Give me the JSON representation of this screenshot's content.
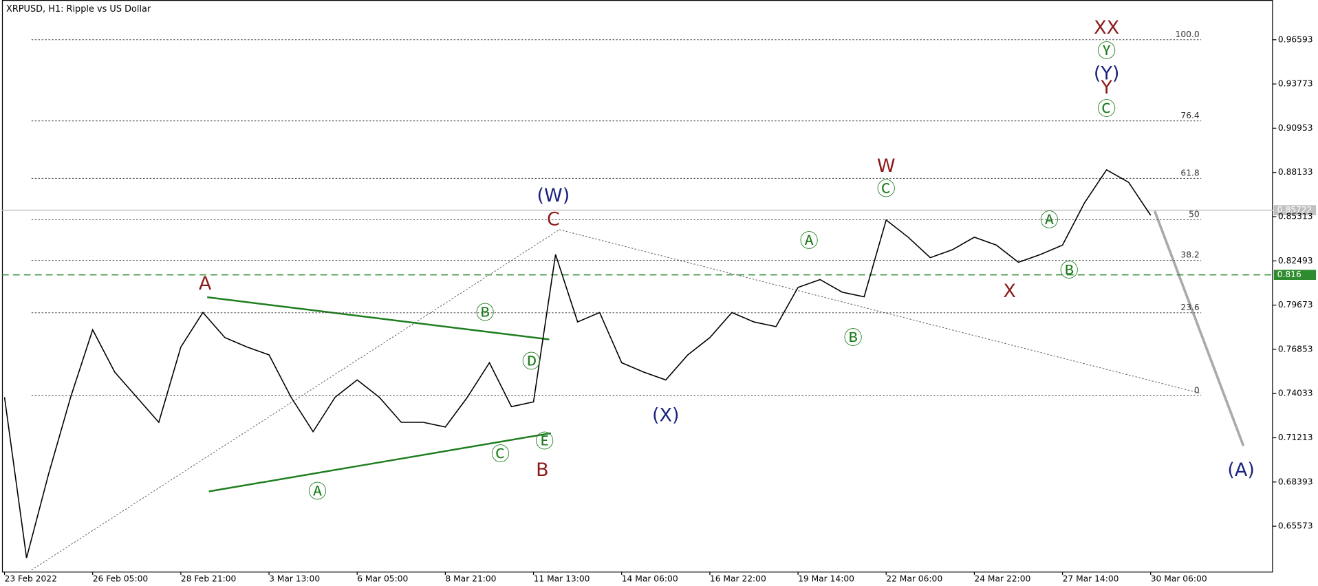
{
  "chart_data": {
    "type": "line",
    "title": "XRPUSD, H1:  Ripple vs US Dollar",
    "color": "#000000",
    "categories": [
      "23 Feb 2022",
      null,
      null,
      null,
      "26 Feb 05:00",
      null,
      null,
      null,
      "28 Feb 21:00",
      null,
      null,
      null,
      "3 Mar 13:00",
      null,
      null,
      null,
      "6 Mar 05:00",
      null,
      null,
      null,
      "8 Mar 21:00",
      null,
      null,
      null,
      "11 Mar 13:00",
      null,
      null,
      null,
      "14 Mar 06:00",
      null,
      null,
      null,
      "16 Mar 22:00",
      null,
      null,
      null,
      "19 Mar 14:00",
      null,
      null,
      null,
      "22 Mar 06:00",
      null,
      null,
      null,
      "24 Mar 22:00",
      null,
      null,
      null,
      "27 Mar 14:00",
      null,
      null,
      null,
      "30 Mar 06:00"
    ],
    "values": [
      0.738,
      0.6355,
      0.689,
      0.738,
      0.781,
      0.754,
      0.738,
      0.722,
      0.77,
      0.792,
      0.776,
      0.77,
      0.765,
      0.738,
      0.716,
      0.738,
      0.749,
      0.738,
      0.722,
      0.722,
      0.719,
      0.738,
      0.76,
      0.732,
      0.735,
      0.829,
      0.786,
      0.792,
      0.76,
      0.754,
      0.749,
      0.765,
      0.776,
      0.792,
      0.786,
      0.783,
      0.808,
      0.813,
      0.805,
      0.802,
      0.851,
      0.84,
      0.827,
      0.832,
      0.84,
      0.835,
      0.824,
      0.829,
      0.835,
      0.862,
      0.883,
      0.875,
      0.854
    ],
    "ylim": [
      0.62677,
      0.99127
    ],
    "yticks": [
      0.96593,
      0.93773,
      0.90953,
      0.88133,
      0.85313,
      0.82493,
      0.79673,
      0.76853,
      0.74033,
      0.71213,
      0.68393,
      0.65573
    ],
    "price_lines": [
      {
        "value": 0.85722,
        "color": "#c0c0c0",
        "style": "solid"
      },
      {
        "value": 0.816,
        "color": "#2e8b2e",
        "style": "dashed"
      }
    ],
    "fib_levels": [
      {
        "label": "100.0",
        "price": 0.96593
      },
      {
        "label": "76.4",
        "price": 0.91419
      },
      {
        "label": "61.8",
        "price": 0.87754
      },
      {
        "label": "50",
        "price": 0.85112
      },
      {
        "label": "38.2",
        "price": 0.82525
      },
      {
        "label": "23.6",
        "price": 0.79183
      },
      {
        "label": "0",
        "price": 0.73901
      }
    ],
    "annotations": [
      {
        "text": "A",
        "color": "#8b1a1a",
        "at": 9.1,
        "price": 0.81
      },
      {
        "text": "C",
        "color": "#8b1a1a",
        "at": 24.9,
        "price": 0.851
      },
      {
        "text": "(W)",
        "color": "#1a237e",
        "at": 24.9,
        "price": 0.866
      },
      {
        "text": "B",
        "color": "#8b1a1a",
        "at": 24.4,
        "price": 0.691
      },
      {
        "text": "Ⓔ",
        "color": "#1e7d1e",
        "at": 24.5,
        "price": 0.709
      },
      {
        "text": "Ⓓ",
        "color": "#1e7d1e",
        "at": 23.9,
        "price": 0.76
      },
      {
        "text": "Ⓑ",
        "color": "#1e7d1e",
        "at": 21.8,
        "price": 0.791
      },
      {
        "text": "Ⓒ",
        "color": "#1e7d1e",
        "at": 22.5,
        "price": 0.701
      },
      {
        "text": "Ⓐ",
        "color": "#1e7d1e",
        "at": 14.2,
        "price": 0.677
      },
      {
        "text": "(X)",
        "color": "#1a237e",
        "at": 30.0,
        "price": 0.726
      },
      {
        "text": "Ⓐ",
        "color": "#1e7d1e",
        "at": 36.5,
        "price": 0.837
      },
      {
        "text": "Ⓑ",
        "color": "#1e7d1e",
        "at": 38.5,
        "price": 0.775
      },
      {
        "text": "Ⓒ",
        "color": "#1e7d1e",
        "at": 40.0,
        "price": 0.87
      },
      {
        "text": "W",
        "color": "#8b1a1a",
        "at": 40.0,
        "price": 0.885
      },
      {
        "text": "X",
        "color": "#8b1a1a",
        "at": 45.6,
        "price": 0.805
      },
      {
        "text": "Ⓐ",
        "color": "#1e7d1e",
        "at": 47.4,
        "price": 0.85
      },
      {
        "text": "Ⓑ",
        "color": "#1e7d1e",
        "at": 48.3,
        "price": 0.818
      },
      {
        "text": "Ⓒ",
        "color": "#1e7d1e",
        "at": 50.0,
        "price": 0.921
      },
      {
        "text": "Y",
        "color": "#8b1a1a",
        "at": 50.0,
        "price": 0.935
      },
      {
        "text": "(Y)",
        "color": "#1a237e",
        "at": 50.0,
        "price": 0.944
      },
      {
        "text": "Ⓨ",
        "color": "#1e7d1e",
        "at": 50.0,
        "price": 0.958
      },
      {
        "text": "XX",
        "color": "#8b1a1a",
        "at": 50.0,
        "price": 0.973
      },
      {
        "text": "(A)",
        "color": "#1a237e",
        "at": 56.1,
        "price": 0.691
      }
    ]
  }
}
